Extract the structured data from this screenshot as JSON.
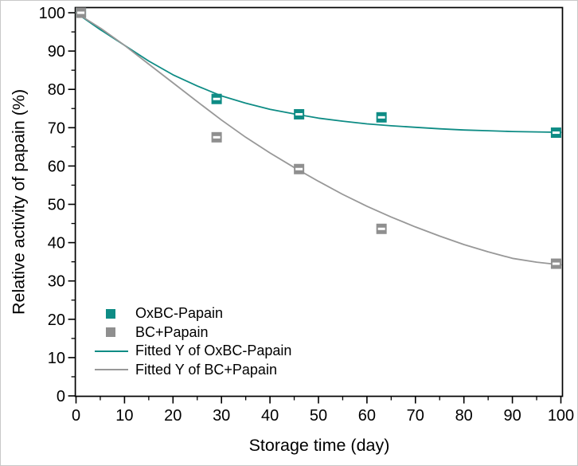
{
  "figure": {
    "background": "#ffffff",
    "frame_color": "#000000",
    "text_color": "#000000"
  },
  "chart_data": {
    "type": "scatter",
    "title": "",
    "xlabel": "Storage time (day)",
    "ylabel": "Relative activity of papain (%)",
    "xlim": [
      0,
      100
    ],
    "ylim": [
      0,
      100
    ],
    "grid": false,
    "x_axis": {
      "major_ticks": [
        0,
        10,
        20,
        30,
        40,
        50,
        60,
        70,
        80,
        90,
        100
      ],
      "tick_labels": [
        "0",
        "10",
        "20",
        "30",
        "40",
        "50",
        "60",
        "70",
        "80",
        "90",
        "100"
      ],
      "minor_ticks": [
        5,
        15,
        25,
        35,
        45,
        55,
        65,
        75,
        85,
        95
      ]
    },
    "y_axis": {
      "major_ticks": [
        0,
        10,
        20,
        30,
        40,
        50,
        60,
        70,
        80,
        90,
        100
      ],
      "tick_labels": [
        "0",
        "10",
        "20",
        "30",
        "40",
        "50",
        "60",
        "70",
        "80",
        "90",
        "100"
      ],
      "minor_ticks": [
        5,
        15,
        25,
        35,
        45,
        55,
        65,
        75,
        85,
        95
      ]
    },
    "series": [
      {
        "name": "OxBC-Papain",
        "kind": "scatter",
        "marker": "square",
        "color": "#0e8c85",
        "points": [
          [
            1,
            100
          ],
          [
            29,
            77.5
          ],
          [
            46,
            73.5
          ],
          [
            63,
            72.7
          ],
          [
            99,
            68.7
          ]
        ]
      },
      {
        "name": "BC+Papain",
        "kind": "scatter",
        "marker": "square",
        "color": "#8f8f8f",
        "points": [
          [
            1,
            100
          ],
          [
            29,
            67.5
          ],
          [
            46,
            59.2
          ],
          [
            63,
            43.6
          ],
          [
            99,
            34.5
          ]
        ]
      },
      {
        "name": "Fitted Y of OxBC-Papain",
        "kind": "line",
        "color": "#0e8c85",
        "points": [
          [
            0,
            100
          ],
          [
            5,
            95.6
          ],
          [
            10,
            91.5
          ],
          [
            15,
            87.4
          ],
          [
            20,
            83.8
          ],
          [
            25,
            80.9
          ],
          [
            30,
            78.3
          ],
          [
            35,
            76.4
          ],
          [
            40,
            74.8
          ],
          [
            45,
            73.6
          ],
          [
            50,
            72.5
          ],
          [
            55,
            71.7
          ],
          [
            60,
            71.0
          ],
          [
            65,
            70.5
          ],
          [
            70,
            70.1
          ],
          [
            75,
            69.7
          ],
          [
            80,
            69.4
          ],
          [
            85,
            69.2
          ],
          [
            90,
            69.0
          ],
          [
            95,
            68.9
          ],
          [
            100,
            68.8
          ]
        ]
      },
      {
        "name": "Fitted Y of BC+Papain",
        "kind": "line",
        "color": "#989898",
        "points": [
          [
            0,
            100
          ],
          [
            5,
            96.0
          ],
          [
            10,
            91.5
          ],
          [
            15,
            86.6
          ],
          [
            20,
            81.7
          ],
          [
            25,
            76.8
          ],
          [
            30,
            72.0
          ],
          [
            35,
            67.5
          ],
          [
            40,
            63.4
          ],
          [
            45,
            59.6
          ],
          [
            50,
            56.0
          ],
          [
            55,
            52.6
          ],
          [
            60,
            49.5
          ],
          [
            65,
            46.7
          ],
          [
            70,
            44.1
          ],
          [
            75,
            41.7
          ],
          [
            80,
            39.5
          ],
          [
            85,
            37.6
          ],
          [
            90,
            35.9
          ],
          [
            95,
            34.9
          ],
          [
            100,
            34.2
          ]
        ]
      }
    ],
    "legend": {
      "position": "inside-bottom-left",
      "entries": [
        {
          "label": "OxBC-Papain",
          "swatch": "square",
          "color": "#0e8c85"
        },
        {
          "label": "BC+Papain",
          "swatch": "square",
          "color": "#8f8f8f"
        },
        {
          "label": "Fitted Y of OxBC-Papain",
          "swatch": "line",
          "color": "#0e8c85"
        },
        {
          "label": "Fitted Y of BC+Papain",
          "swatch": "line",
          "color": "#989898"
        }
      ]
    }
  }
}
